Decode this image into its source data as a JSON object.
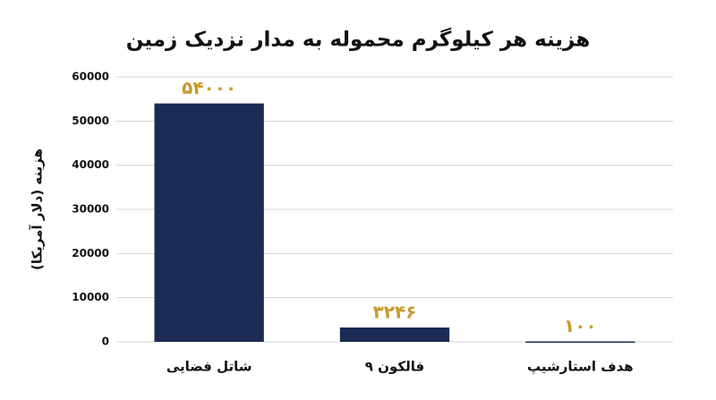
{
  "chart_data": {
    "type": "bar",
    "title": "هزینه هر کیلوگرم محموله به مدار نزدیک زمین",
    "y_label": "هزینه (دلار آمریکا)",
    "categories": [
      "شاتل فضایی",
      "فالکون ۹",
      "هدف استارشیپ"
    ],
    "values": [
      54000,
      3246,
      100
    ],
    "value_labels": [
      "۵۴۰۰۰",
      "۳۲۴۶",
      "۱۰۰"
    ],
    "color": "#1b2b55",
    "label_color": "#c99a2e",
    "ylim": [
      0,
      60000
    ],
    "yticks": [
      0,
      10000,
      20000,
      30000,
      40000,
      50000,
      60000
    ],
    "grid": true
  }
}
